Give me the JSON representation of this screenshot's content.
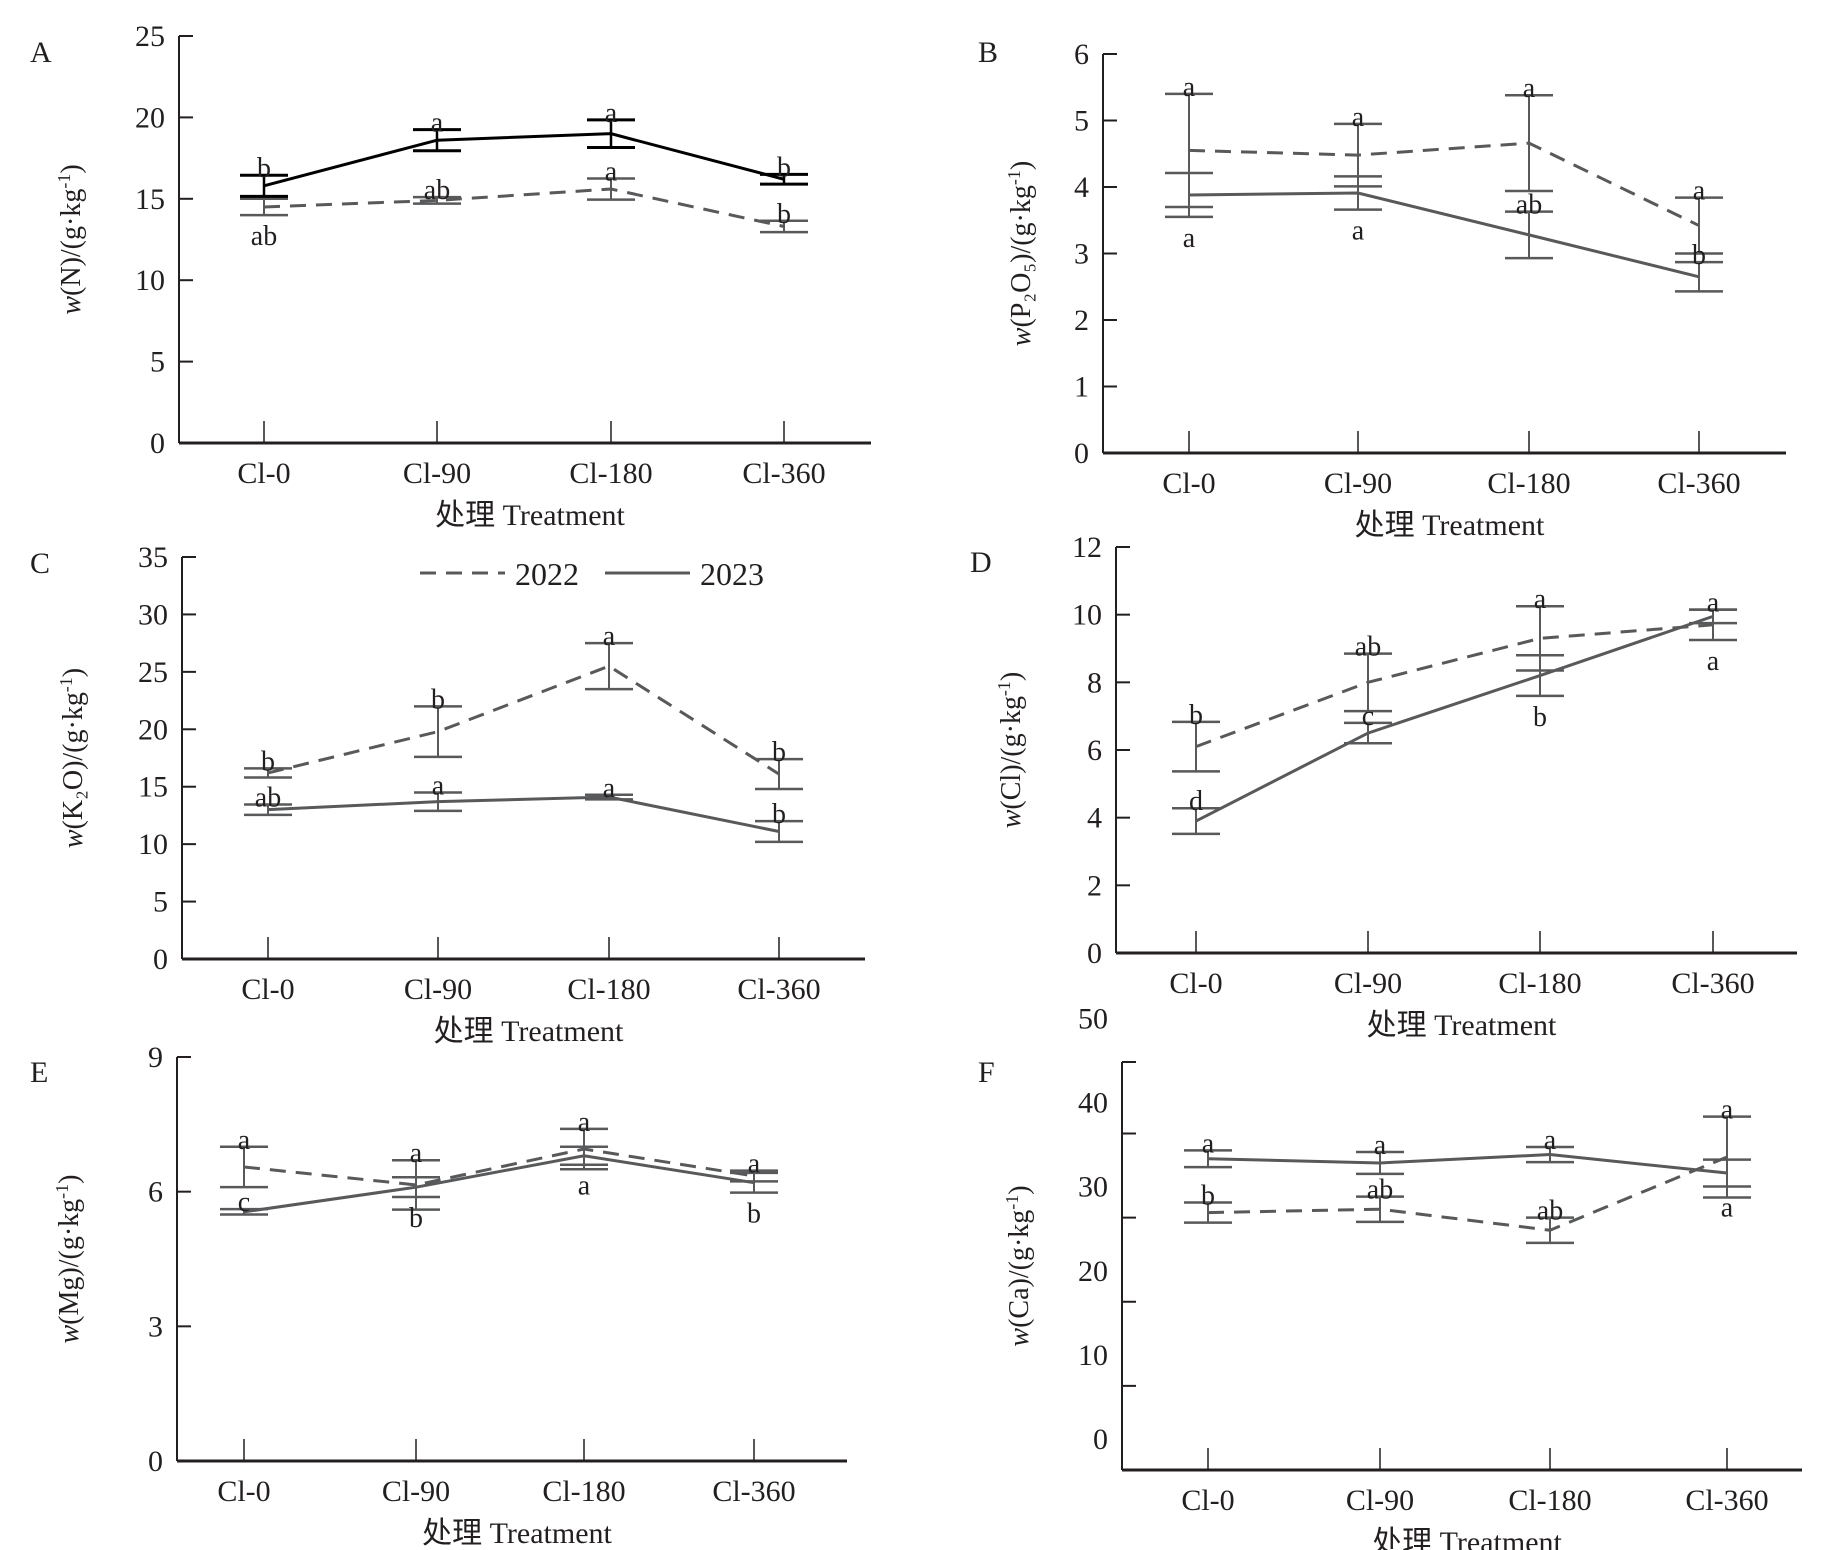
{
  "chart_data": [
    {
      "panel": "A",
      "type": "line",
      "ylabel": "w(N)/(g·kg⁻¹)",
      "ylabel_parts": {
        "prefix": "w",
        "species": "(N)",
        "unit": "/(g·kg",
        "sup": "-1",
        "close": ")"
      },
      "xlabel": "处理 Treatment",
      "categories": [
        "Cl-0",
        "Cl-90",
        "Cl-180",
        "Cl-360"
      ],
      "ylim": [
        0,
        25
      ],
      "yticks": [
        0,
        5,
        10,
        15,
        20,
        25
      ],
      "series": [
        {
          "name": "2022",
          "style": "dashed",
          "values": [
            14.5,
            14.9,
            15.6,
            13.3
          ],
          "errors": [
            0.5,
            0.2,
            0.65,
            0.35
          ],
          "letters": [
            "ab",
            "ab",
            "a",
            "b"
          ]
        },
        {
          "name": "2023",
          "style": "solid",
          "values": [
            15.8,
            18.6,
            19.0,
            16.2
          ],
          "errors": [
            0.65,
            0.65,
            0.85,
            0.3
          ],
          "letters": [
            "b",
            "a",
            "a",
            "b"
          ]
        }
      ]
    },
    {
      "panel": "B",
      "type": "line",
      "ylabel": "w(P₂O₅)/(g·kg⁻¹)",
      "ylabel_parts": {
        "prefix": "w",
        "species": "(P₂O₅)",
        "unit": "/(g·kg",
        "sup": "-1",
        "close": ")"
      },
      "xlabel": "处理 Treatment",
      "categories": [
        "Cl-0",
        "Cl-90",
        "Cl-180",
        "Cl-360"
      ],
      "ylim": [
        0,
        6
      ],
      "yticks": [
        0,
        1,
        2,
        3,
        4,
        5,
        6
      ],
      "series": [
        {
          "name": "2022",
          "style": "dashed",
          "values": [
            4.55,
            4.48,
            4.66,
            3.42
          ],
          "errors": [
            0.85,
            0.47,
            0.72,
            0.42
          ],
          "letters": [
            "a",
            "a",
            "a",
            "a"
          ]
        },
        {
          "name": "2023",
          "style": "solid",
          "values": [
            3.88,
            3.91,
            3.28,
            2.65
          ],
          "errors": [
            0.33,
            0.25,
            0.35,
            0.22
          ],
          "letters": [
            "a",
            "a",
            "ab",
            "b"
          ]
        }
      ]
    },
    {
      "panel": "C",
      "type": "line",
      "ylabel": "w(K₂O)/(g·kg⁻¹)",
      "ylabel_parts": {
        "prefix": "w",
        "species": "(K₂O)",
        "unit": "/(g·kg",
        "sup": "-1",
        "close": ")"
      },
      "xlabel": "处理 Treatment",
      "categories": [
        "Cl-0",
        "Cl-90",
        "Cl-180",
        "Cl-360"
      ],
      "ylim": [
        0,
        35
      ],
      "yticks": [
        0,
        5,
        10,
        15,
        20,
        25,
        30,
        35
      ],
      "legend": {
        "placement": "top-center",
        "entries": [
          {
            "name": "2022",
            "style": "dashed"
          },
          {
            "name": "2023",
            "style": "solid"
          }
        ]
      },
      "series": [
        {
          "name": "2022",
          "style": "dashed",
          "values": [
            16.2,
            19.8,
            25.5,
            16.1
          ],
          "errors": [
            0.4,
            2.2,
            2.0,
            1.3
          ],
          "letters": [
            "b",
            "b",
            "a",
            "b"
          ]
        },
        {
          "name": "2023",
          "style": "solid",
          "values": [
            13.0,
            13.7,
            14.1,
            11.1
          ],
          "errors": [
            0.45,
            0.8,
            0.2,
            0.9
          ],
          "letters": [
            "ab",
            "a",
            "a",
            "b"
          ]
        }
      ]
    },
    {
      "panel": "D",
      "type": "line",
      "ylabel": "w(Cl)/(g·kg⁻¹)",
      "ylabel_parts": {
        "prefix": "w",
        "species": "(Cl)",
        "unit": "/(g·kg",
        "sup": "-1",
        "close": ")"
      },
      "xlabel": "处理 Treatment",
      "categories": [
        "Cl-0",
        "Cl-90",
        "Cl-180",
        "Cl-360"
      ],
      "ylim": [
        0,
        12
      ],
      "yticks": [
        0,
        2,
        4,
        6,
        8,
        10,
        12
      ],
      "series": [
        {
          "name": "2022",
          "style": "dashed",
          "values": [
            6.1,
            8.0,
            9.3,
            9.7
          ],
          "errors": [
            0.73,
            0.85,
            0.95,
            0.45
          ],
          "letters": [
            "b",
            "ab",
            "a",
            "a"
          ]
        },
        {
          "name": "2023",
          "style": "solid",
          "values": [
            3.9,
            6.5,
            8.2,
            9.95
          ],
          "errors": [
            0.38,
            0.3,
            0.6,
            0.2
          ],
          "letters": [
            "d",
            "c",
            "b",
            "a"
          ]
        }
      ]
    },
    {
      "panel": "E",
      "type": "line",
      "ylabel": "w(Mg)/(g·kg⁻¹)",
      "ylabel_parts": {
        "prefix": "w",
        "species": "(Mg)",
        "unit": "/(g·kg",
        "sup": "-1",
        "close": ")"
      },
      "xlabel": "处理 Treatment",
      "categories": [
        "Cl-0",
        "Cl-90",
        "Cl-180",
        "Cl-360"
      ],
      "ylim": [
        0,
        9
      ],
      "yticks": [
        0,
        3,
        6,
        9
      ],
      "series": [
        {
          "name": "2022",
          "style": "dashed",
          "values": [
            6.55,
            6.15,
            6.95,
            6.35
          ],
          "errors": [
            0.45,
            0.55,
            0.45,
            0.12
          ],
          "letters": [
            "a",
            "a",
            "a",
            "a"
          ]
        },
        {
          "name": "2023",
          "style": "solid",
          "values": [
            5.55,
            6.1,
            6.8,
            6.2
          ],
          "errors": [
            0.06,
            0.22,
            0.2,
            0.22
          ],
          "letters": [
            "c",
            "b",
            "a",
            "b"
          ]
        }
      ]
    },
    {
      "panel": "F",
      "type": "line",
      "ylabel": "w(Ca)/(g·kg⁻¹)",
      "ylabel_parts": {
        "prefix": "w",
        "species": "(Ca)",
        "unit": "/(g·kg",
        "sup": "-1",
        "close": ")"
      },
      "xlabel": "处理 Treatment",
      "categories": [
        "Cl-0",
        "Cl-90",
        "Cl-180",
        "Cl-360"
      ],
      "ylim": [
        0,
        50
      ],
      "yticks": [
        10,
        20,
        30,
        40
      ],
      "ytick_labels": [
        "0",
        "10",
        "20",
        "30",
        "40",
        "50"
      ],
      "series": [
        {
          "name": "2022",
          "style": "dashed",
          "values": [
            30.6,
            31.0,
            28.5,
            37.2
          ],
          "errors": [
            1.2,
            1.5,
            1.5,
            4.8
          ],
          "letters": [
            "b",
            "ab",
            "ab",
            "a"
          ]
        },
        {
          "name": "2023",
          "style": "solid",
          "values": [
            37.0,
            36.5,
            37.5,
            35.3
          ],
          "errors": [
            1.0,
            1.3,
            0.9,
            1.6
          ],
          "letters": [
            "a",
            "a",
            "a",
            "a"
          ]
        }
      ]
    }
  ],
  "colors": {
    "axis": "#231f20",
    "series_2022": "#58595b",
    "series_2023_A": "#000000",
    "series_2023": "#58595b",
    "text": "#231f20"
  }
}
